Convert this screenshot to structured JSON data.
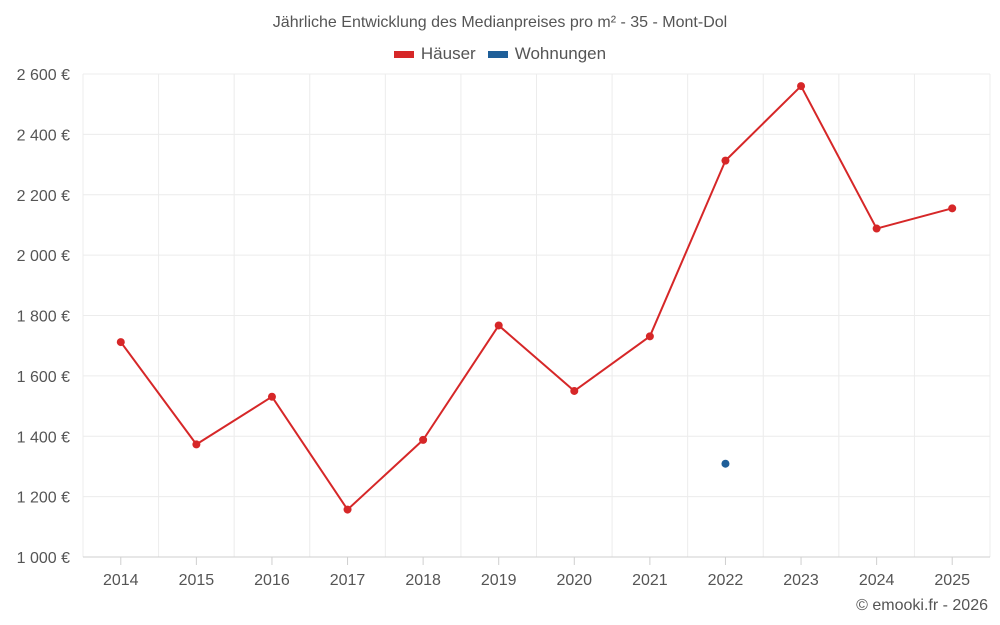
{
  "title": "Jährliche Entwicklung des Medianpreises pro m² - 35 - Mont-Dol",
  "credit": "© emooki.fr - 2026",
  "chart_data": {
    "type": "line",
    "title": "Jährliche Entwicklung des Medianpreises pro m² - 35 - Mont-Dol",
    "xlabel": "",
    "ylabel": "",
    "categories": [
      "2014",
      "2015",
      "2016",
      "2017",
      "2018",
      "2019",
      "2020",
      "2021",
      "2022",
      "2023",
      "2024",
      "2025"
    ],
    "ylim": [
      1000,
      2600
    ],
    "yticks": [
      1000,
      1200,
      1400,
      1600,
      1800,
      2000,
      2200,
      2400,
      2600
    ],
    "ytick_labels": [
      "1 000 €",
      "1 200 €",
      "1 400 €",
      "1 600 €",
      "1 800 €",
      "2 000 €",
      "2 200 €",
      "2 400 €",
      "2 600 €"
    ],
    "grid": true,
    "legend_position": "top-center",
    "series": [
      {
        "name": "Häuser",
        "color": "#d62728",
        "values": [
          1712,
          1373,
          1531,
          1157,
          1388,
          1767,
          1550,
          1731,
          2313,
          2560,
          2088,
          2155
        ]
      },
      {
        "name": "Wohnungen",
        "color": "#1f5f99",
        "values": [
          null,
          null,
          null,
          null,
          null,
          null,
          null,
          null,
          1309,
          null,
          null,
          null
        ]
      }
    ]
  }
}
